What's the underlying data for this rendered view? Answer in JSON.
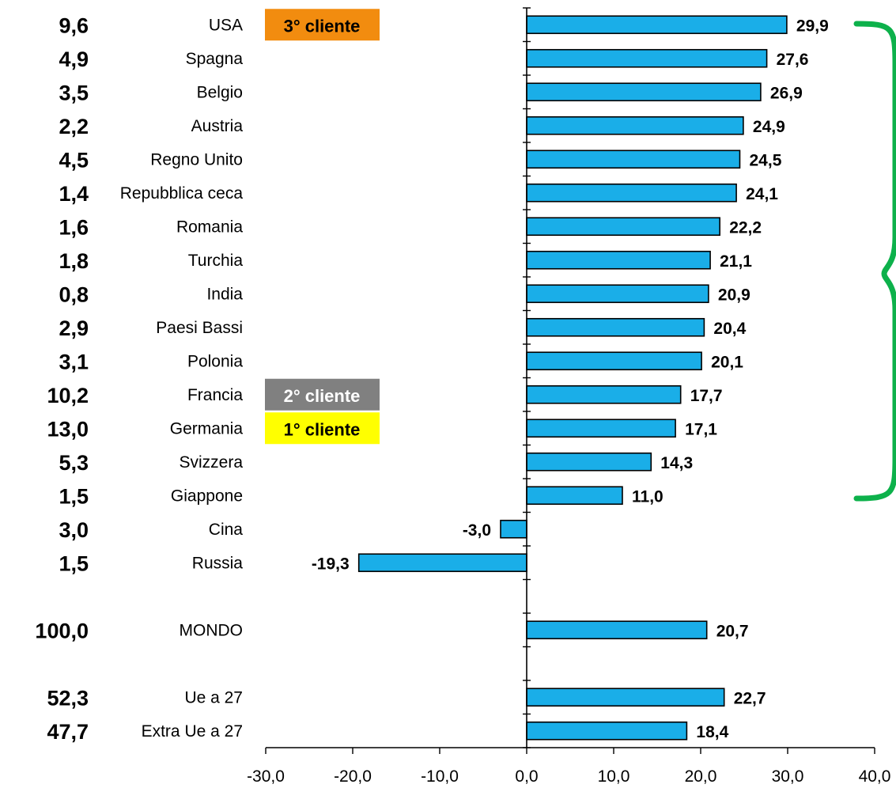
{
  "chart_data": {
    "type": "bar",
    "orientation": "horizontal",
    "title": "",
    "xlabel": "",
    "ylabel": "",
    "xlim": [
      -30,
      40
    ],
    "x_ticks": [
      "-30,0",
      "-20,0",
      "-10,0",
      "0,0",
      "10,0",
      "20,0",
      "30,0",
      "40,0"
    ],
    "grid": false,
    "bar_color": "#1aaee8",
    "brace_color": "#0db14b",
    "rows": [
      {
        "category": "USA",
        "share": "9,6",
        "value": 29.9,
        "value_label": "29,9"
      },
      {
        "category": "Spagna",
        "share": "4,9",
        "value": 27.6,
        "value_label": "27,6"
      },
      {
        "category": "Belgio",
        "share": "3,5",
        "value": 26.9,
        "value_label": "26,9"
      },
      {
        "category": "Austria",
        "share": "2,2",
        "value": 24.9,
        "value_label": "24,9"
      },
      {
        "category": "Regno Unito",
        "share": "4,5",
        "value": 24.5,
        "value_label": "24,5"
      },
      {
        "category": "Repubblica ceca",
        "share": "1,4",
        "value": 24.1,
        "value_label": "24,1"
      },
      {
        "category": "Romania",
        "share": "1,6",
        "value": 22.2,
        "value_label": "22,2"
      },
      {
        "category": "Turchia",
        "share": "1,8",
        "value": 21.1,
        "value_label": "21,1"
      },
      {
        "category": "India",
        "share": "0,8",
        "value": 20.9,
        "value_label": "20,9"
      },
      {
        "category": "Paesi Bassi",
        "share": "2,9",
        "value": 20.4,
        "value_label": "20,4"
      },
      {
        "category": "Polonia",
        "share": "3,1",
        "value": 20.1,
        "value_label": "20,1"
      },
      {
        "category": "Francia",
        "share": "10,2",
        "value": 17.7,
        "value_label": "17,7"
      },
      {
        "category": "Germania",
        "share": "13,0",
        "value": 17.1,
        "value_label": "17,1"
      },
      {
        "category": "Svizzera",
        "share": "5,3",
        "value": 14.3,
        "value_label": "14,3"
      },
      {
        "category": "Giappone",
        "share": "1,5",
        "value": 11.0,
        "value_label": "11,0"
      },
      {
        "category": "Cina",
        "share": "3,0",
        "value": -3.0,
        "value_label": "-3,0"
      },
      {
        "category": "Russia",
        "share": "1,5",
        "value": -19.3,
        "value_label": "-19,3"
      },
      {
        "category": "",
        "share": "",
        "value": null,
        "value_label": ""
      },
      {
        "category": "MONDO",
        "share": "100,0",
        "value": 20.7,
        "value_label": "20,7"
      },
      {
        "category": "",
        "share": "",
        "value": null,
        "value_label": ""
      },
      {
        "category": "Ue a 27",
        "share": "52,3",
        "value": 22.7,
        "value_label": "22,7"
      },
      {
        "category": "Extra Ue a 27",
        "share": "47,7",
        "value": 18.4,
        "value_label": "18,4"
      }
    ],
    "annotations": [
      {
        "text": "3° cliente",
        "category": "USA",
        "bg": "#f28c0f",
        "fg": "#000000"
      },
      {
        "text": "2° cliente",
        "category": "Francia",
        "bg": "#808080",
        "fg": "#ffffff"
      },
      {
        "text": "1° cliente",
        "category": "Germania",
        "bg": "#ffff00",
        "fg": "#000000"
      }
    ]
  }
}
